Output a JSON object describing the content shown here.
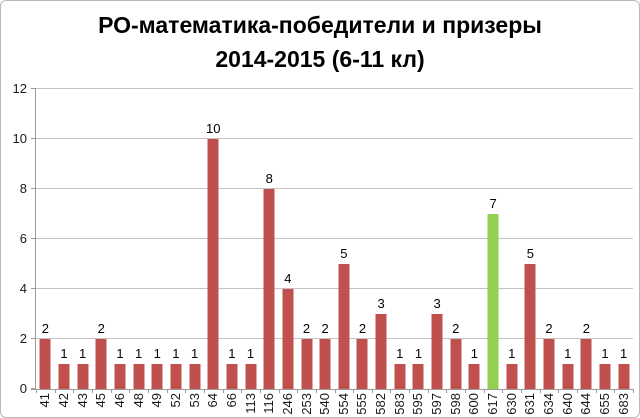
{
  "title": {
    "line1": "РО-математика-победители и призеры",
    "line2": "2014-2015 (6-11 кл)"
  },
  "chart_data": {
    "type": "bar",
    "title": "РО-математика-победители и призеры 2014-2015 (6-11 кл)",
    "xlabel": "",
    "ylabel": "",
    "categories": [
      "41",
      "42",
      "43",
      "45",
      "46",
      "48",
      "49",
      "52",
      "53",
      "64",
      "66",
      "113",
      "116",
      "246",
      "253",
      "540",
      "554",
      "555",
      "582",
      "583",
      "595",
      "597",
      "598",
      "600",
      "617",
      "630",
      "631",
      "634",
      "640",
      "644",
      "655",
      "683"
    ],
    "values": [
      2,
      1,
      1,
      2,
      1,
      1,
      1,
      1,
      1,
      10,
      1,
      1,
      8,
      4,
      2,
      2,
      5,
      2,
      3,
      1,
      1,
      3,
      2,
      1,
      7,
      1,
      5,
      2,
      1,
      2,
      1,
      1
    ],
    "data_labels_shown": true,
    "highlight": {
      "category": "617",
      "index": 24,
      "value": 7
    },
    "ylim": [
      0,
      12
    ],
    "yticks": [
      0,
      2,
      4,
      6,
      8,
      10,
      12
    ],
    "grid": true,
    "legend": false,
    "colors": {
      "bar": "#c0504d",
      "highlight_bar": "#92d050",
      "gridline": "#c3c3c3",
      "axis_line": "#9c9c9c",
      "text": "#1a1a1a",
      "frame_border": "#b9b9b9",
      "background": "#ffffff"
    }
  }
}
